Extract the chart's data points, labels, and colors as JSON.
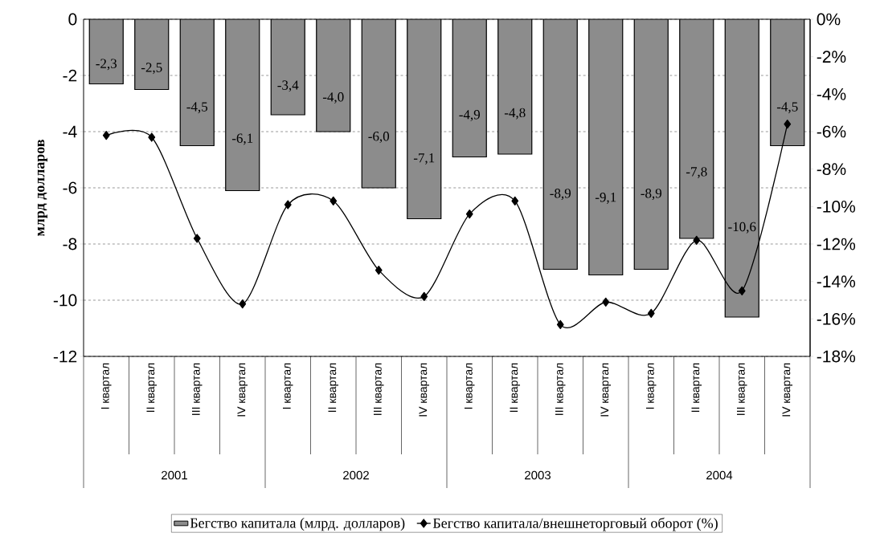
{
  "chart_data": {
    "type": "bar",
    "ylabel": "млрд долларов",
    "categories": [
      "I квартал",
      "II квартал",
      "III квартал",
      "IV квартал",
      "I квартал",
      "II квартал",
      "III квартал",
      "IV квартал",
      "I квартал",
      "II квартал",
      "III квартал",
      "IV квартал",
      "I квартал",
      "II квартал",
      "III квартал",
      "IV квартал"
    ],
    "series": [
      {
        "name": "Бегство капитала (млрд. долларов)",
        "color": "#8c8c8c",
        "values": [
          -2.3,
          -2.5,
          -4.5,
          -6.1,
          -3.4,
          -4.0,
          -6.0,
          -7.1,
          -4.9,
          -4.8,
          -8.9,
          -9.1,
          -8.9,
          -7.8,
          -10.6,
          -4.5
        ],
        "value_labels": [
          "-2,3",
          "-2,5",
          "-4,5",
          "-6,1",
          "-3,4",
          "-4,0",
          "-6,0",
          "-7,1",
          "-4,9",
          "-4,8",
          "-8,9",
          "-9,1",
          "-8,9",
          "-7,8",
          "-10,6",
          "-4,5"
        ]
      },
      {
        "name": "Бегство капитала/внешнеторговый оборот (%)",
        "type": "line",
        "axis": "y2",
        "color": "#000000",
        "marker": "diamond",
        "line_style": "solid",
        "values": [
          -6.2,
          -6.3,
          -11.7,
          -15.2,
          -9.9,
          -9.7,
          -13.4,
          -14.8,
          -10.4,
          -9.7,
          -16.3,
          -15.1,
          -15.7,
          -11.8,
          -14.5,
          -5.6
        ]
      }
    ],
    "ylim": [
      -12,
      0
    ],
    "yticks": [
      -12,
      -10,
      -8,
      -6,
      -4,
      -2,
      0
    ],
    "y2lim": [
      -18,
      0
    ],
    "y2ticks": [
      {
        "value": -18,
        "label": "-18%"
      },
      {
        "value": -16,
        "label": "-16%"
      },
      {
        "value": -14,
        "label": "-14%"
      },
      {
        "value": -12,
        "label": "-12%"
      },
      {
        "value": -10,
        "label": "-10%"
      },
      {
        "value": -8,
        "label": "-8%"
      },
      {
        "value": -6,
        "label": "-6%"
      },
      {
        "value": -4,
        "label": "-4%"
      },
      {
        "value": -2,
        "label": "-2%"
      },
      {
        "value": 0,
        "label": "0%"
      }
    ],
    "grid": "y",
    "legend": "bottom",
    "annotations": [
      "2001",
      "2002",
      "2003",
      "2004"
    ]
  }
}
